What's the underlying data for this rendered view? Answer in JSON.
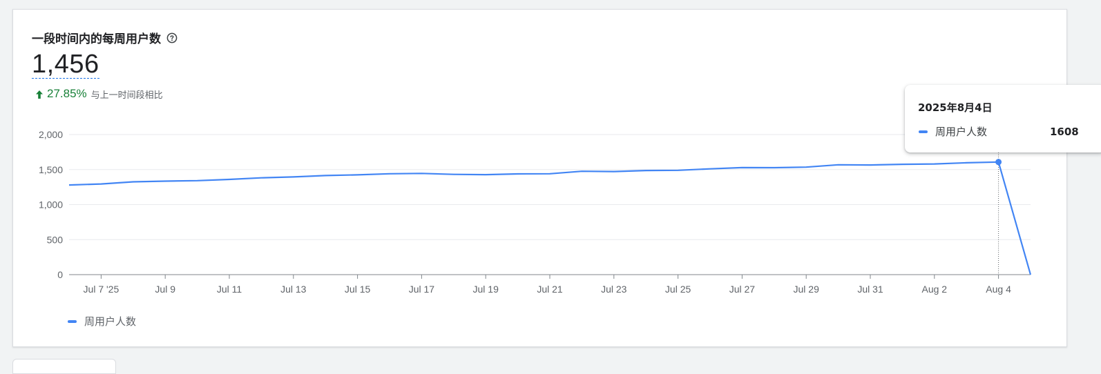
{
  "card": {
    "title": "一段时间内的每周用户数",
    "help_icon": "help-circle-icon",
    "value": "1,456",
    "change": {
      "icon": "arrow-up-icon",
      "percent": "27.85%",
      "label": "与上一时间段相比",
      "color": "#188038"
    }
  },
  "tooltip": {
    "date": "2025年8月4日",
    "series_label": "周用户人数",
    "value": "1608"
  },
  "legend": {
    "label": "周用户人数",
    "color": "#4285f4"
  },
  "chart_data": {
    "type": "line",
    "ylim": [
      0,
      2000
    ],
    "yticks": [
      0,
      500,
      1000,
      1500,
      2000
    ],
    "ytick_labels": [
      "0",
      "500",
      "1,000",
      "1,500",
      "2,000"
    ],
    "xtick_labels": [
      "Jul 7 '25",
      "Jul 9",
      "Jul 11",
      "Jul 13",
      "Jul 15",
      "Jul 17",
      "Jul 19",
      "Jul 21",
      "Jul 23",
      "Jul 25",
      "Jul 27",
      "Jul 29",
      "Jul 31",
      "Aug 2",
      "Aug 4"
    ],
    "x": [
      "Jul 6",
      "Jul 7",
      "Jul 8",
      "Jul 9",
      "Jul 10",
      "Jul 11",
      "Jul 12",
      "Jul 13",
      "Jul 14",
      "Jul 15",
      "Jul 16",
      "Jul 17",
      "Jul 18",
      "Jul 19",
      "Jul 20",
      "Jul 21",
      "Jul 22",
      "Jul 23",
      "Jul 24",
      "Jul 25",
      "Jul 26",
      "Jul 27",
      "Jul 28",
      "Jul 29",
      "Jul 30",
      "Jul 31",
      "Aug 1",
      "Aug 2",
      "Aug 3",
      "Aug 4",
      "Aug 5"
    ],
    "series": [
      {
        "name": "周用户人数",
        "color": "#4285f4",
        "values": [
          1280,
          1295,
          1325,
          1335,
          1342,
          1360,
          1382,
          1395,
          1415,
          1425,
          1440,
          1445,
          1432,
          1428,
          1438,
          1440,
          1476,
          1472,
          1487,
          1490,
          1510,
          1528,
          1527,
          1535,
          1568,
          1566,
          1575,
          1580,
          1597,
          1608,
          0
        ]
      }
    ],
    "highlight": {
      "x": "Aug 4",
      "value": 1608
    },
    "grid": true
  }
}
